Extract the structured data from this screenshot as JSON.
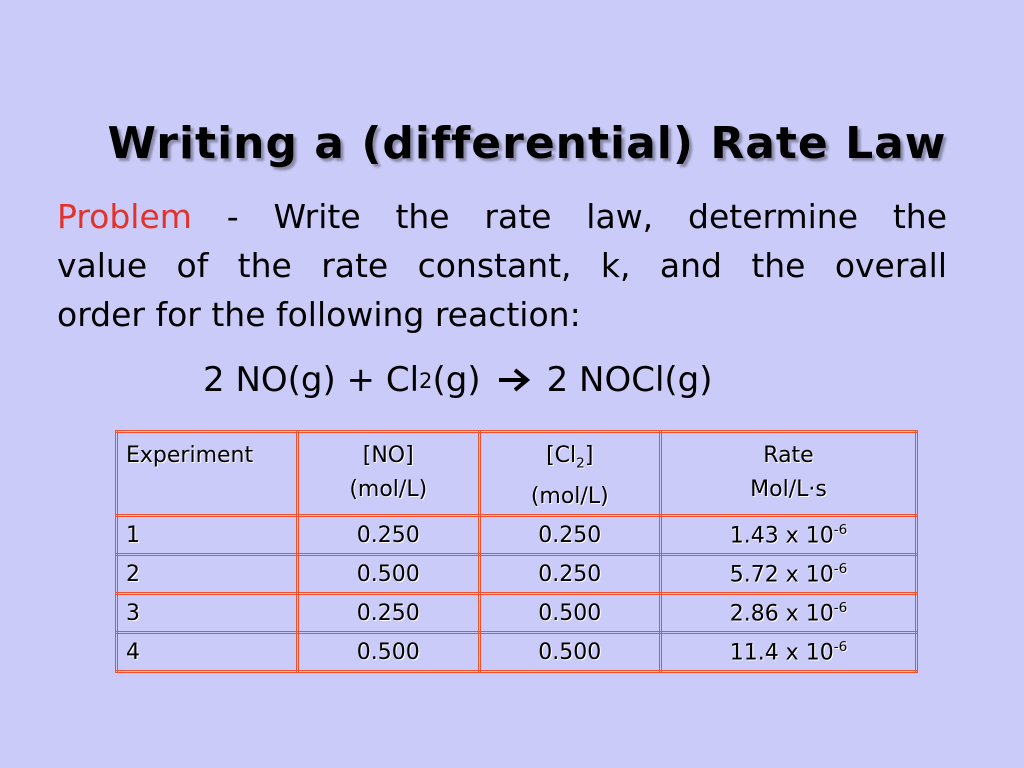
{
  "title": "Writing a (differential) Rate Law",
  "problem": {
    "label": "Problem",
    "lines": [
      " - Write the rate law, determine the",
      "value of the rate constant, k, and the overall",
      "order for the following reaction:"
    ]
  },
  "equation": {
    "left": "2 NO(g) + Cl",
    "left_sub": "2",
    "left_end": "(g)",
    "right": "2 NOCl(g)"
  },
  "table": {
    "header": [
      {
        "line1": "Experiment"
      },
      {
        "line1": "[NO]",
        "line2": "(mol/L)"
      },
      {
        "line1": "[Cl",
        "line1_sub": "2",
        "line1_end": "]",
        "line2": "(mol/L)"
      },
      {
        "line1": "Rate",
        "line2": "Mol/L·s"
      }
    ],
    "rows": [
      [
        "1",
        "0.250",
        "0.250",
        {
          "base": "1.43 x 10",
          "exp": "-6"
        }
      ],
      [
        "2",
        "0.500",
        "0.250",
        {
          "base": "5.72 x 10",
          "exp": "-6"
        }
      ],
      [
        "3",
        "0.250",
        "0.500",
        {
          "base": "2.86 x 10",
          "exp": "-6"
        }
      ],
      [
        "4",
        "0.500",
        "0.500",
        {
          "base": "11.4 x 10",
          "exp": "-6"
        }
      ]
    ]
  }
}
